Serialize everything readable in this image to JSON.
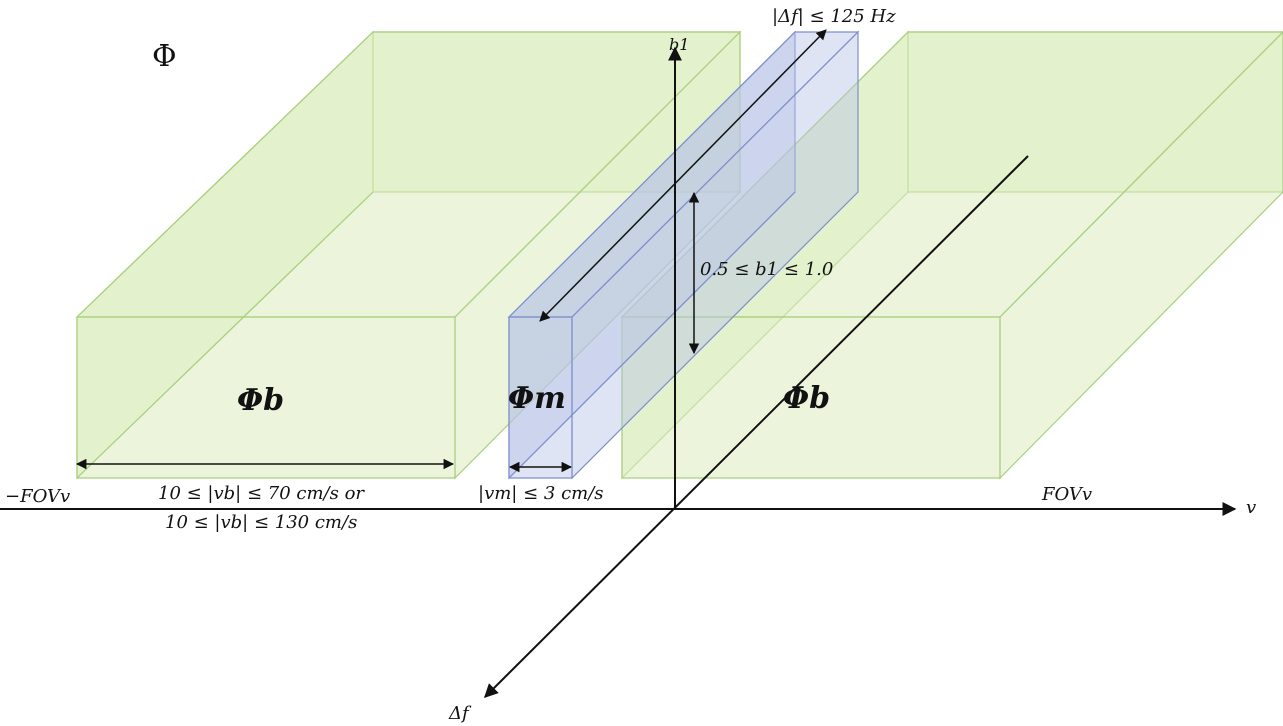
{
  "colors": {
    "phi_b_fill": "#dcedbf",
    "phi_b_stroke": "#a9cf7d",
    "phi_m_fill": "#b7c3e6",
    "phi_m_stroke": "#7e8fcc",
    "axis": "#111111"
  },
  "labels": {
    "phi": "Φ",
    "phi_b_left": "Φb",
    "phi_m": "Φm",
    "phi_b_right": "Φb",
    "axis_b1": "b1",
    "axis_v": "v",
    "axis_df": "Δf",
    "neg_fovv": "−FOVv",
    "fovv": "FOVv",
    "df_range": "|Δf| ≤ 125 Hz",
    "b1_range": "0.5 ≤ b1 ≤ 1.0",
    "vm_range": "|vm| ≤ 3 cm/s",
    "vb_range_1": "10 ≤ |vb| ≤ 70 cm/s or",
    "vb_range_2": "10 ≤ |vb| ≤ 130 cm/s"
  }
}
